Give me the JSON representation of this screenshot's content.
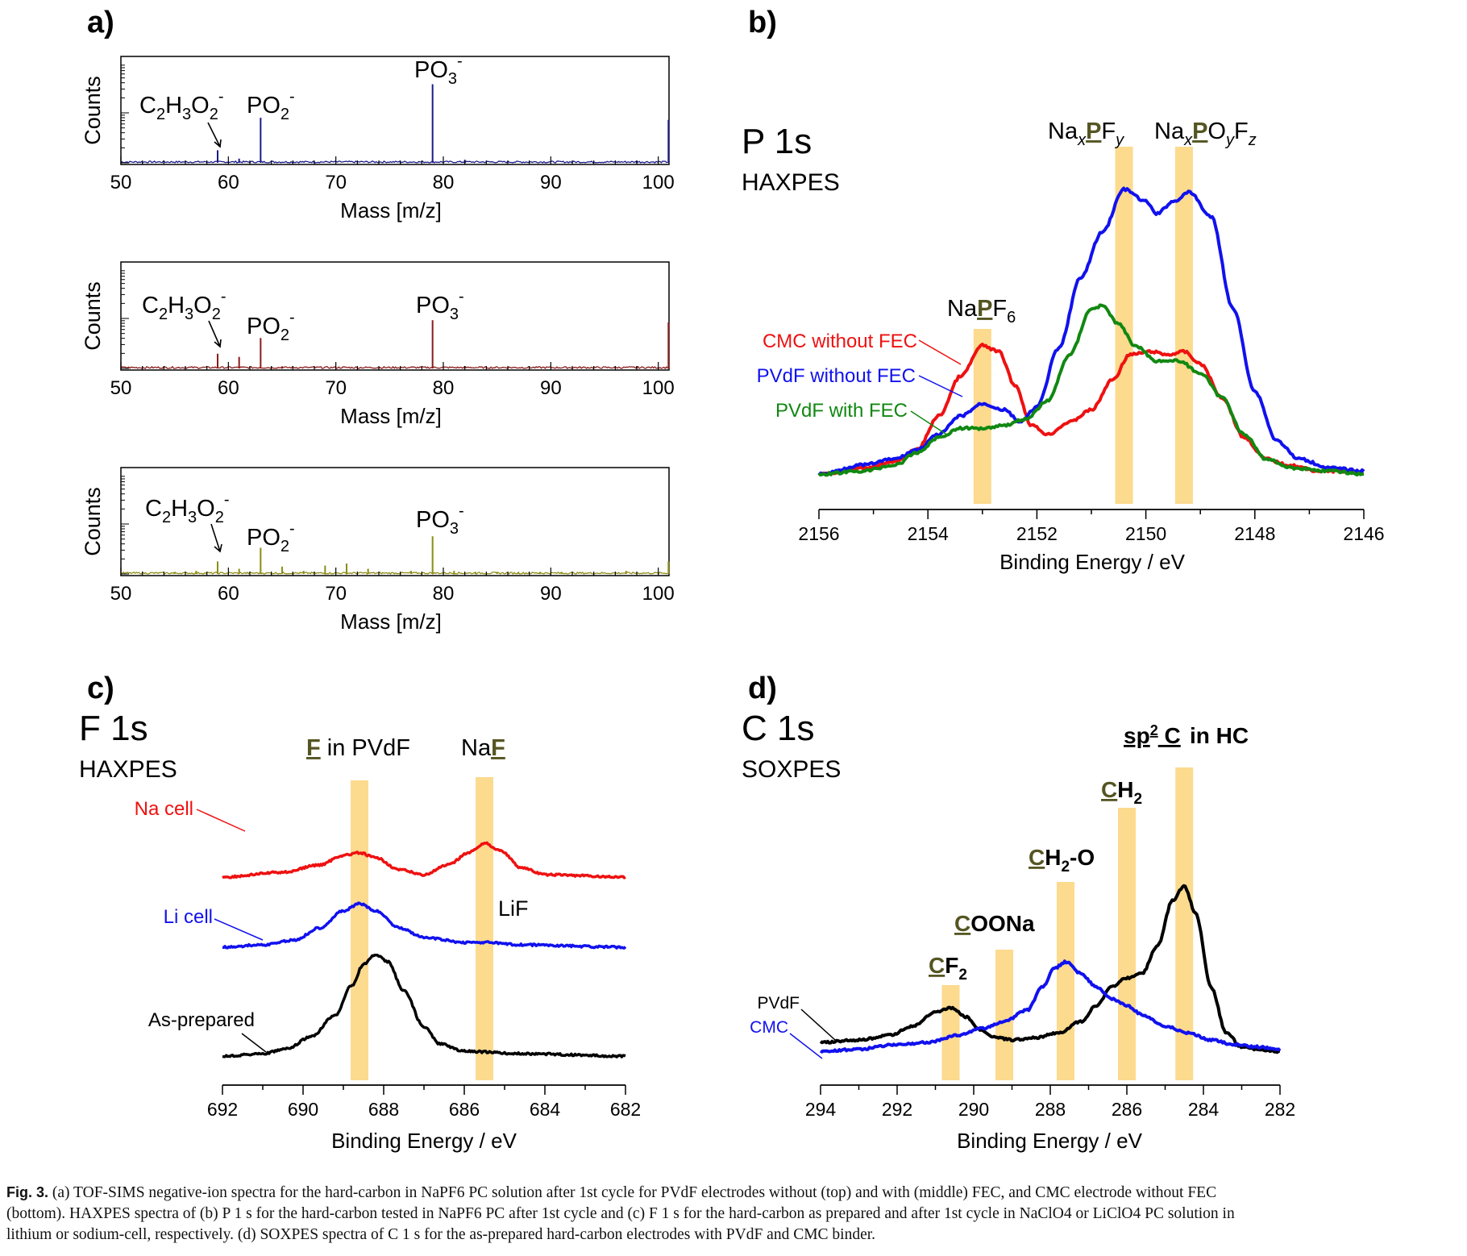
{
  "chart_data": [
    {
      "panel": "a)",
      "type": "line",
      "stack": [
        {
          "position": "top",
          "color": "#1a1a8c",
          "xlabel": "Mass [m/z]",
          "ylabel": "Counts",
          "xlim": [
            50,
            101
          ],
          "ylim": [
            0,
            1
          ],
          "xticks": [
            "50",
            "60",
            "70",
            "80",
            "90",
            "100"
          ],
          "annotations": [
            {
              "text": "C2H3O2-",
              "x": 59
            },
            {
              "text": "PO2-",
              "x": 63
            },
            {
              "text": "PO3-",
              "x": 79
            }
          ],
          "peaks": [
            [
              59,
              0.12
            ],
            [
              61,
              0.04
            ],
            [
              63,
              0.43
            ],
            [
              79,
              0.75
            ],
            [
              82,
              0.03
            ],
            [
              98,
              0.02
            ],
            [
              101,
              0.41
            ]
          ]
        },
        {
          "position": "middle",
          "color": "#8b1a1a",
          "xlabel": "Mass [m/z]",
          "ylabel": "Counts",
          "xlim": [
            50,
            101
          ],
          "ylim": [
            0,
            1
          ],
          "xticks": [
            "50",
            "60",
            "70",
            "80",
            "90",
            "100"
          ],
          "annotations": [
            {
              "text": "C2H3O2-",
              "x": 59
            },
            {
              "text": "PO2-",
              "x": 63
            },
            {
              "text": "PO3-",
              "x": 79
            }
          ],
          "peaks": [
            [
              59,
              0.14
            ],
            [
              61,
              0.11
            ],
            [
              63,
              0.29
            ],
            [
              65,
              0.02
            ],
            [
              79,
              0.46
            ],
            [
              82,
              0.02
            ],
            [
              98,
              0.02
            ],
            [
              101,
              0.44
            ]
          ]
        },
        {
          "position": "bottom",
          "color": "#8c8c14",
          "xlabel": "Mass [m/z]",
          "ylabel": "Counts",
          "xlim": [
            50,
            101
          ],
          "ylim": [
            0,
            1
          ],
          "xticks": [
            "50",
            "60",
            "70",
            "80",
            "90",
            "100"
          ],
          "annotations": [
            {
              "text": "C2H3O2-",
              "x": 59
            },
            {
              "text": "PO2-",
              "x": 63
            },
            {
              "text": "PO3-",
              "x": 79
            }
          ],
          "peaks": [
            [
              55,
              0.02
            ],
            [
              57,
              0.03
            ],
            [
              59,
              0.12
            ],
            [
              61,
              0.05
            ],
            [
              63,
              0.25
            ],
            [
              65,
              0.07
            ],
            [
              67,
              0.03
            ],
            [
              69,
              0.08
            ],
            [
              71,
              0.1
            ],
            [
              73,
              0.05
            ],
            [
              77,
              0.03
            ],
            [
              79,
              0.36
            ],
            [
              81,
              0.03
            ],
            [
              83,
              0.02
            ],
            [
              85,
              0.02
            ],
            [
              87,
              0.02
            ],
            [
              89,
              0.02
            ],
            [
              91,
              0.02
            ],
            [
              97,
              0.03
            ],
            [
              101,
              0.12
            ]
          ]
        }
      ]
    },
    {
      "panel": "b)",
      "type": "line",
      "title": "P 1s",
      "subtitle": "HAXPES",
      "xlabel": "Binding Energy / eV",
      "xlim": [
        2156,
        2146
      ],
      "ylim": [
        0,
        1
      ],
      "xticks": [
        2156,
        2154,
        2152,
        2150,
        2148,
        2146
      ],
      "highlights": [
        {
          "x": 2153.0,
          "label": "NaPF6"
        },
        {
          "x": 2150.4,
          "label": "NaxPFy"
        },
        {
          "x": 2149.3,
          "label": "NaxPOyFz"
        }
      ],
      "series": [
        {
          "name": "CMC without FEC",
          "color": "#ee1111",
          "points": [
            [
              2156,
              0.01
            ],
            [
              2155.2,
              0.03
            ],
            [
              2154.6,
              0.05
            ],
            [
              2154.2,
              0.09
            ],
            [
              2153.8,
              0.2
            ],
            [
              2153.4,
              0.33
            ],
            [
              2153.0,
              0.43
            ],
            [
              2152.7,
              0.41
            ],
            [
              2152.4,
              0.3
            ],
            [
              2152.1,
              0.17
            ],
            [
              2151.8,
              0.14
            ],
            [
              2151.4,
              0.18
            ],
            [
              2151.0,
              0.22
            ],
            [
              2150.6,
              0.32
            ],
            [
              2150.3,
              0.4
            ],
            [
              2149.9,
              0.41
            ],
            [
              2149.6,
              0.4
            ],
            [
              2149.3,
              0.41
            ],
            [
              2149.0,
              0.37
            ],
            [
              2148.6,
              0.26
            ],
            [
              2148.2,
              0.13
            ],
            [
              2147.8,
              0.06
            ],
            [
              2147.4,
              0.04
            ],
            [
              2146.8,
              0.02
            ],
            [
              2146,
              0.02
            ]
          ]
        },
        {
          "name": "PVdF without FEC",
          "color": "#1111ee",
          "points": [
            [
              2156,
              0.01
            ],
            [
              2155.2,
              0.04
            ],
            [
              2154.6,
              0.06
            ],
            [
              2154.2,
              0.09
            ],
            [
              2153.8,
              0.14
            ],
            [
              2153.4,
              0.2
            ],
            [
              2153.0,
              0.24
            ],
            [
              2152.6,
              0.22
            ],
            [
              2152.3,
              0.18
            ],
            [
              2152.0,
              0.23
            ],
            [
              2151.6,
              0.42
            ],
            [
              2151.2,
              0.65
            ],
            [
              2150.8,
              0.8
            ],
            [
              2150.4,
              0.94
            ],
            [
              2150.0,
              0.9
            ],
            [
              2149.8,
              0.86
            ],
            [
              2149.5,
              0.9
            ],
            [
              2149.2,
              0.93
            ],
            [
              2148.8,
              0.85
            ],
            [
              2148.4,
              0.55
            ],
            [
              2148.0,
              0.28
            ],
            [
              2147.6,
              0.12
            ],
            [
              2147.2,
              0.06
            ],
            [
              2146.6,
              0.03
            ],
            [
              2146,
              0.02
            ]
          ]
        },
        {
          "name": "PVdF with FEC",
          "color": "#118811",
          "points": [
            [
              2156,
              0.01
            ],
            [
              2155.2,
              0.02
            ],
            [
              2154.6,
              0.04
            ],
            [
              2154.2,
              0.08
            ],
            [
              2153.8,
              0.13
            ],
            [
              2153.4,
              0.16
            ],
            [
              2153.0,
              0.16
            ],
            [
              2152.6,
              0.17
            ],
            [
              2152.2,
              0.19
            ],
            [
              2151.8,
              0.25
            ],
            [
              2151.4,
              0.4
            ],
            [
              2151.0,
              0.55
            ],
            [
              2150.8,
              0.56
            ],
            [
              2150.5,
              0.5
            ],
            [
              2150.2,
              0.43
            ],
            [
              2149.8,
              0.38
            ],
            [
              2149.4,
              0.38
            ],
            [
              2149.0,
              0.34
            ],
            [
              2148.6,
              0.26
            ],
            [
              2148.2,
              0.14
            ],
            [
              2147.8,
              0.06
            ],
            [
              2147.3,
              0.03
            ],
            [
              2146.6,
              0.02
            ],
            [
              2146,
              0.01
            ]
          ]
        }
      ]
    },
    {
      "panel": "c)",
      "type": "line",
      "title": "F 1s",
      "subtitle": "HAXPES",
      "xlabel": "Binding Energy / eV",
      "xlim": [
        692,
        682
      ],
      "ylim": [
        0,
        1
      ],
      "xticks": [
        692,
        690,
        688,
        686,
        684,
        682
      ],
      "highlights": [
        {
          "x": 688.6,
          "label": "F in PVdF"
        },
        {
          "x": 685.5,
          "label": "NaF"
        }
      ],
      "lif_label": "LiF",
      "series": [
        {
          "name": "Na cell",
          "color": "#ee1111",
          "offset": 0.74,
          "points": [
            [
              692,
              0.0
            ],
            [
              690.5,
              0.02
            ],
            [
              689.6,
              0.05
            ],
            [
              689.0,
              0.09
            ],
            [
              688.6,
              0.1
            ],
            [
              688.2,
              0.08
            ],
            [
              687.6,
              0.03
            ],
            [
              687.0,
              0.01
            ],
            [
              686.4,
              0.05
            ],
            [
              685.9,
              0.1
            ],
            [
              685.5,
              0.14
            ],
            [
              685.1,
              0.11
            ],
            [
              684.6,
              0.04
            ],
            [
              684.0,
              0.01
            ],
            [
              682,
              0.0
            ]
          ]
        },
        {
          "name": "Li cell",
          "color": "#1111ee",
          "offset": 0.45,
          "points": [
            [
              692,
              0.0
            ],
            [
              691,
              0.01
            ],
            [
              690.2,
              0.03
            ],
            [
              689.6,
              0.08
            ],
            [
              689.0,
              0.15
            ],
            [
              688.6,
              0.18
            ],
            [
              688.2,
              0.15
            ],
            [
              687.6,
              0.08
            ],
            [
              687.0,
              0.04
            ],
            [
              686.0,
              0.02
            ],
            [
              685.5,
              0.02
            ],
            [
              684.6,
              0.01
            ],
            [
              682,
              0.0
            ]
          ]
        },
        {
          "name": "As-prepared",
          "color": "#000000",
          "offset": 0.0,
          "points": [
            [
              692,
              0.0
            ],
            [
              691,
              0.01
            ],
            [
              690.4,
              0.03
            ],
            [
              689.8,
              0.08
            ],
            [
              689.2,
              0.17
            ],
            [
              688.8,
              0.29
            ],
            [
              688.5,
              0.38
            ],
            [
              688.2,
              0.42
            ],
            [
              687.9,
              0.39
            ],
            [
              687.5,
              0.27
            ],
            [
              687.0,
              0.12
            ],
            [
              686.6,
              0.05
            ],
            [
              686.0,
              0.02
            ],
            [
              684.6,
              0.01
            ],
            [
              682,
              0.0
            ]
          ]
        }
      ]
    },
    {
      "panel": "d)",
      "type": "line",
      "title": "C 1s",
      "subtitle": "SOXPES",
      "xlabel": "Binding Energy / eV",
      "xlim": [
        294,
        282
      ],
      "ylim": [
        0,
        1
      ],
      "xticks": [
        294,
        292,
        290,
        288,
        286,
        284,
        282
      ],
      "highlights": [
        {
          "x": 290.6,
          "label": "CF2"
        },
        {
          "x": 289.2,
          "label": "COONa"
        },
        {
          "x": 287.6,
          "label": "CH2-O"
        },
        {
          "x": 286.0,
          "label": "CH2"
        },
        {
          "x": 284.5,
          "label": "sp2 C in HC"
        }
      ],
      "series": [
        {
          "name": "PVdF",
          "color": "#000000",
          "points": [
            [
              294,
              0.06
            ],
            [
              293,
              0.07
            ],
            [
              292.2,
              0.09
            ],
            [
              291.6,
              0.13
            ],
            [
              291.0,
              0.19
            ],
            [
              290.6,
              0.21
            ],
            [
              290.2,
              0.17
            ],
            [
              289.8,
              0.11
            ],
            [
              289.4,
              0.08
            ],
            [
              289.0,
              0.07
            ],
            [
              288.4,
              0.08
            ],
            [
              287.8,
              0.1
            ],
            [
              287.2,
              0.15
            ],
            [
              286.8,
              0.22
            ],
            [
              286.4,
              0.3
            ],
            [
              286.0,
              0.34
            ],
            [
              285.6,
              0.36
            ],
            [
              285.2,
              0.48
            ],
            [
              284.8,
              0.68
            ],
            [
              284.5,
              0.74
            ],
            [
              284.2,
              0.62
            ],
            [
              283.8,
              0.3
            ],
            [
              283.4,
              0.1
            ],
            [
              283.0,
              0.04
            ],
            [
              282.6,
              0.03
            ],
            [
              282,
              0.02
            ]
          ]
        },
        {
          "name": "CMC",
          "color": "#1111ee",
          "points": [
            [
              294,
              0.02
            ],
            [
              293,
              0.03
            ],
            [
              292,
              0.05
            ],
            [
              291.2,
              0.06
            ],
            [
              290.4,
              0.09
            ],
            [
              289.8,
              0.12
            ],
            [
              289.2,
              0.15
            ],
            [
              288.6,
              0.2
            ],
            [
              288.2,
              0.3
            ],
            [
              287.9,
              0.38
            ],
            [
              287.6,
              0.41
            ],
            [
              287.2,
              0.36
            ],
            [
              286.8,
              0.3
            ],
            [
              286.4,
              0.25
            ],
            [
              286.0,
              0.22
            ],
            [
              285.6,
              0.18
            ],
            [
              285.0,
              0.13
            ],
            [
              284.4,
              0.1
            ],
            [
              283.8,
              0.07
            ],
            [
              283.2,
              0.05
            ],
            [
              282.6,
              0.04
            ],
            [
              282,
              0.03
            ]
          ]
        }
      ]
    }
  ],
  "caption": {
    "label": "Fig. 3.",
    "lines": [
      "(a) TOF-SIMS negative-ion spectra for the hard-carbon in NaPF6 PC solution after 1st cycle for PVdF electrodes without (top) and with (middle) FEC, and CMC electrode without FEC",
      "(bottom). HAXPES spectra of (b) P 1 s for the hard-carbon tested in NaPF6 PC after 1st cycle and (c) F 1 s for the hard-carbon as prepared and after 1st cycle in NaClO4 or LiClO4 PC solution in",
      "lithium or sodium-cell, respectively. (d) SOXPES spectra of C 1 s for the as-prepared hard-carbon electrodes with PVdF and CMC binder."
    ]
  }
}
